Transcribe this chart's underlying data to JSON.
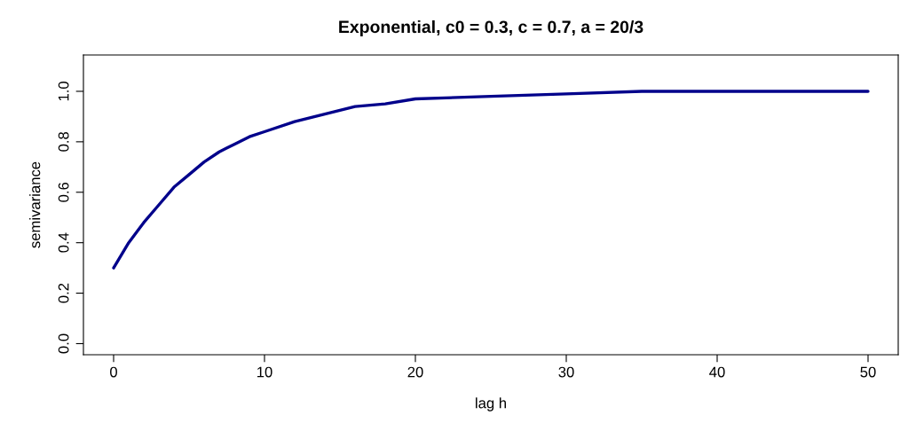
{
  "chart_data": {
    "type": "line",
    "title": "Exponential, c0 = 0.3, c = 0.7, a = 20/3",
    "xlabel": "lag h",
    "ylabel": "semivariance",
    "x": [
      0,
      1,
      2,
      3,
      4,
      5,
      6,
      7,
      8,
      9,
      10,
      12,
      14,
      16,
      18,
      20,
      25,
      30,
      35,
      40,
      45,
      50
    ],
    "series": [
      {
        "color": "#00008b",
        "values": [
          0.3,
          0.4,
          0.48,
          0.55,
          0.62,
          0.67,
          0.72,
          0.76,
          0.79,
          0.82,
          0.84,
          0.88,
          0.91,
          0.94,
          0.95,
          0.97,
          0.98,
          0.99,
          1.0,
          1.0,
          1.0,
          1.0
        ]
      }
    ],
    "xlim": [
      -2,
      52
    ],
    "ylim": [
      -0.044,
      1.144
    ],
    "xticks": [
      0,
      10,
      20,
      30,
      40,
      50
    ],
    "yticks": [
      {
        "value": 0,
        "label": "0.0"
      },
      {
        "value": 0.2,
        "label": "0.2"
      },
      {
        "value": 0.4,
        "label": "0.4"
      },
      {
        "value": 0.6,
        "label": "0.6"
      },
      {
        "value": 0.8,
        "label": "0.8"
      },
      {
        "value": 1.0,
        "label": "1.0"
      }
    ],
    "grid": false,
    "line_style": "solid",
    "marker": "none"
  }
}
